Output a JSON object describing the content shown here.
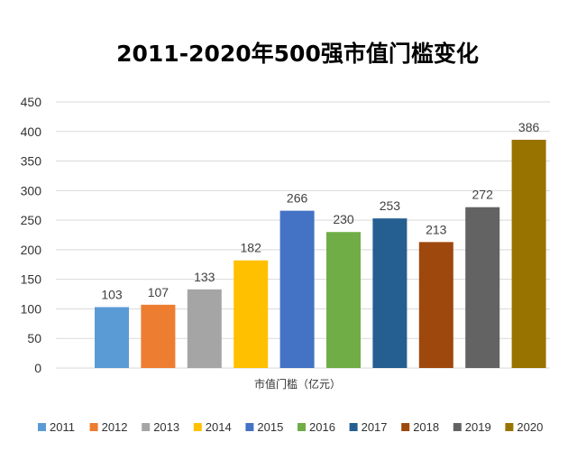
{
  "chart_data": {
    "type": "bar",
    "title": "2011-2020年500强市值门槛变化",
    "xlabel": "市值门槛（亿元）",
    "ylabel": "",
    "ylim": [
      0,
      450
    ],
    "yticks": [
      0,
      50,
      100,
      150,
      200,
      250,
      300,
      350,
      400,
      450
    ],
    "grid": true,
    "legend_position": "bottom",
    "categories": [
      "2011",
      "2012",
      "2013",
      "2014",
      "2015",
      "2016",
      "2017",
      "2018",
      "2019",
      "2020"
    ],
    "values": [
      103,
      107,
      133,
      182,
      266,
      230,
      253,
      213,
      272,
      386
    ],
    "colors": [
      "#5B9BD5",
      "#ED7D31",
      "#A5A5A5",
      "#FFC000",
      "#4472C4",
      "#70AD47",
      "#255E91",
      "#9E480E",
      "#636363",
      "#997300"
    ]
  }
}
